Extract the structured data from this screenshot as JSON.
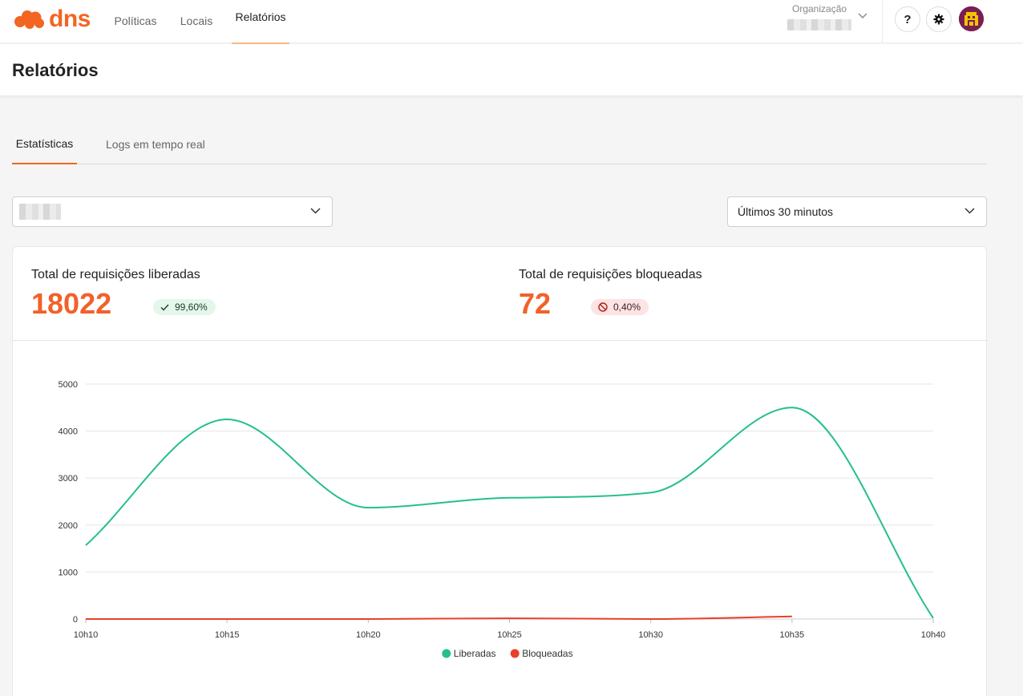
{
  "nav": {
    "brand": "dns",
    "items": [
      {
        "label": "Políticas"
      },
      {
        "label": "Locais"
      },
      {
        "label": "Relatórios"
      }
    ],
    "org_label": "Organização",
    "help_label": "?"
  },
  "page": {
    "title": "Relatórios"
  },
  "tabs": [
    {
      "label": "Estatísticas"
    },
    {
      "label": "Logs em tempo real"
    }
  ],
  "filters": {
    "time_range": "Últimos 30 minutos"
  },
  "stats": {
    "allowed": {
      "label": "Total de requisições liberadas",
      "value": "18022",
      "pct": "99,60%"
    },
    "blocked": {
      "label": "Total de requisições bloqueadas",
      "value": "72",
      "pct": "0,40%"
    }
  },
  "colors": {
    "accent": "#f26522",
    "allowed": "#26bf8c",
    "blocked": "#e8402a"
  },
  "chart_data": {
    "type": "line",
    "x": [
      "10h10",
      "10h15",
      "10h20",
      "10h25",
      "10h30",
      "10h35",
      "10h40"
    ],
    "ylim": [
      0,
      5000
    ],
    "yticks": [
      0,
      1000,
      2000,
      3000,
      4000,
      5000
    ],
    "grid": true,
    "legend": "bottom-center",
    "series": [
      {
        "name": "Liberadas",
        "color": "#26bf8c",
        "values": [
          1570,
          4250,
          2370,
          2580,
          2690,
          4500,
          20
        ]
      },
      {
        "name": "Bloqueadas",
        "color": "#e8402a",
        "values": [
          0,
          0,
          0,
          15,
          0,
          55,
          null
        ]
      }
    ]
  }
}
